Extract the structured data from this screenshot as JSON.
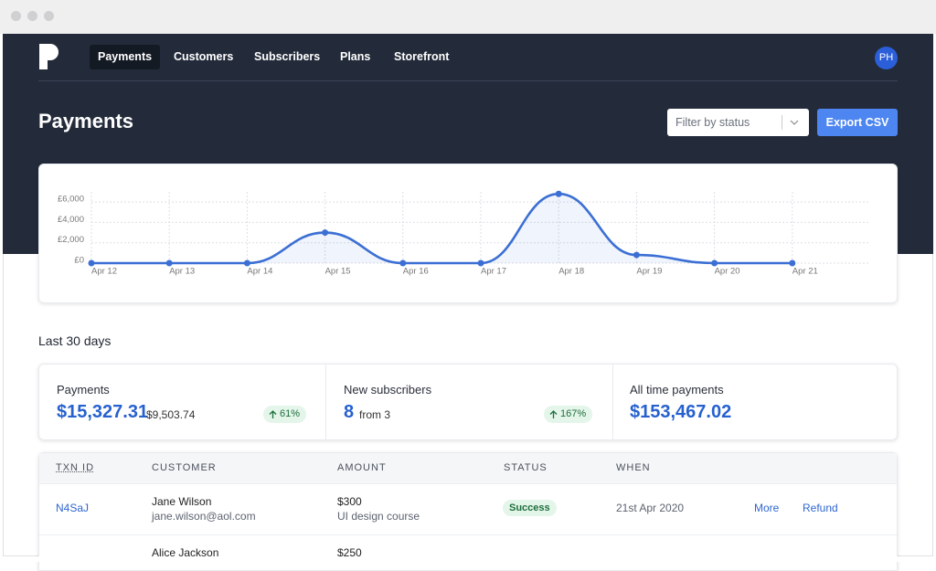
{
  "nav": {
    "items": [
      "Payments",
      "Customers",
      "Subscribers",
      "Plans",
      "Storefront"
    ],
    "avatar": "PH"
  },
  "header": {
    "title": "Payments",
    "filter_placeholder": "Filter by status",
    "export_button": "Export CSV"
  },
  "chart_data": {
    "type": "line",
    "categories": [
      "Apr 12",
      "Apr 13",
      "Apr 14",
      "Apr 15",
      "Apr 16",
      "Apr 17",
      "Apr 18",
      "Apr 19",
      "Apr 20",
      "Apr 21"
    ],
    "values": [
      0,
      0,
      0,
      3000,
      0,
      0,
      6800,
      800,
      0,
      0
    ],
    "color": "#3b6fd4",
    "ylim": [
      0,
      7000
    ],
    "yticks": [
      {
        "value": 0,
        "label": "£0"
      },
      {
        "value": 2000,
        "label": "£2,000"
      },
      {
        "value": 4000,
        "label": "£4,000"
      },
      {
        "value": 6000,
        "label": "£6,000"
      }
    ],
    "grid": true
  },
  "summary": {
    "period": "Last 30 days",
    "stats": [
      {
        "label": "Payments",
        "value": "$15,327.31",
        "previous": "$9,503.74",
        "change": "61%"
      },
      {
        "label": "New subscribers",
        "value": "8",
        "previous": "from 3",
        "change": "167%"
      },
      {
        "label": "All time payments",
        "value": "$153,467.02"
      }
    ]
  },
  "table": {
    "columns": [
      "TXN ID",
      "CUSTOMER",
      "AMOUNT",
      "STATUS",
      "WHEN"
    ],
    "rows": [
      {
        "txn_id": "N4SaJ",
        "customer": "Jane Wilson",
        "email": "jane.wilson@aol.com",
        "amount": "$300",
        "description": "UI design course",
        "status": "Success",
        "when": "21st Apr 2020",
        "actions": [
          "More",
          "Refund"
        ]
      },
      {
        "customer": "Alice Jackson",
        "amount": "$250"
      }
    ]
  }
}
